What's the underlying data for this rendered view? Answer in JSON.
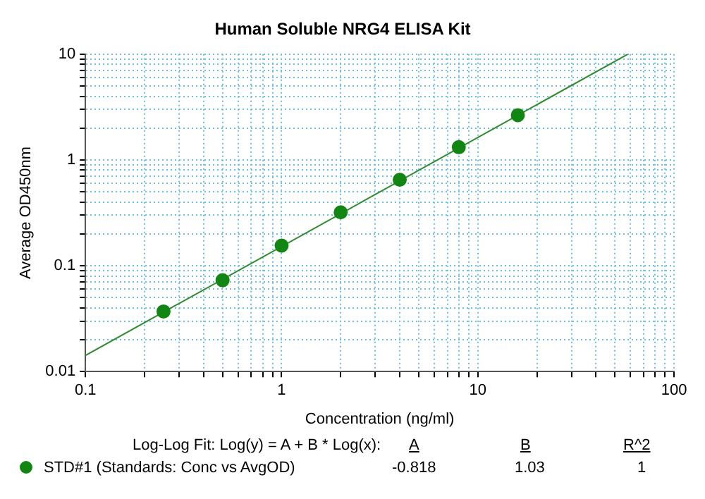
{
  "chart_data": {
    "type": "scatter",
    "title": "Human Soluble NRG4 ELISA Kit",
    "xlabel": "Concentration (ng/ml)",
    "ylabel": "Average OD450nm",
    "x": [
      0.25,
      0.5,
      1,
      2,
      4,
      8,
      16
    ],
    "series": [
      {
        "name": "STD#1 (Standards: Conc vs AvgOD)",
        "color": "#128612",
        "values": [
          0.037,
          0.073,
          0.155,
          0.32,
          0.65,
          1.32,
          2.65
        ]
      },
      {
        "type": "line",
        "color": "#2e8b2e",
        "x": [
          0.1,
          58.2
        ],
        "values": [
          0.0142,
          10
        ],
        "marker": "none"
      }
    ],
    "log": "xy",
    "xlim": [
      0.1,
      100
    ],
    "ylim": [
      0.01,
      10
    ],
    "xticks": [
      0.1,
      {
        "value": 0.2,
        "label": null
      },
      {
        "value": 0.3,
        "label": null
      },
      {
        "value": 0.4,
        "label": null
      },
      {
        "value": 0.5,
        "label": null
      },
      {
        "value": 0.6,
        "label": null
      },
      {
        "value": 0.7,
        "label": null
      },
      {
        "value": 0.8,
        "label": null
      },
      {
        "value": 0.9,
        "label": null
      },
      1,
      {
        "value": 2,
        "label": null
      },
      {
        "value": 3,
        "label": null
      },
      {
        "value": 4,
        "label": null
      },
      {
        "value": 5,
        "label": null
      },
      {
        "value": 6,
        "label": null
      },
      {
        "value": 7,
        "label": null
      },
      {
        "value": 8,
        "label": null
      },
      {
        "value": 9,
        "label": null
      },
      10,
      {
        "value": 20,
        "label": null
      },
      {
        "value": 30,
        "label": null
      },
      {
        "value": 40,
        "label": null
      },
      {
        "value": 50,
        "label": null
      },
      {
        "value": 60,
        "label": null
      },
      {
        "value": 70,
        "label": null
      },
      {
        "value": 80,
        "label": null
      },
      {
        "value": 90,
        "label": null
      },
      100
    ],
    "yticks": [
      0.01,
      {
        "value": 0.02,
        "label": null
      },
      {
        "value": 0.03,
        "label": null
      },
      {
        "value": 0.04,
        "label": null
      },
      {
        "value": 0.05,
        "label": null
      },
      {
        "value": 0.06,
        "label": null
      },
      {
        "value": 0.07,
        "label": null
      },
      {
        "value": 0.08,
        "label": null
      },
      {
        "value": 0.09,
        "label": null
      },
      0.1,
      {
        "value": 0.2,
        "label": null
      },
      {
        "value": 0.3,
        "label": null
      },
      {
        "value": 0.4,
        "label": null
      },
      {
        "value": 0.5,
        "label": null
      },
      {
        "value": 0.6,
        "label": null
      },
      {
        "value": 0.7,
        "label": null
      },
      {
        "value": 0.8,
        "label": null
      },
      {
        "value": 0.9,
        "label": null
      },
      1,
      {
        "value": 2,
        "label": null
      },
      {
        "value": 3,
        "label": null
      },
      {
        "value": 4,
        "label": null
      },
      {
        "value": 5,
        "label": null
      },
      {
        "value": 6,
        "label": null
      },
      {
        "value": 7,
        "label": null
      },
      {
        "value": 8,
        "label": null
      },
      {
        "value": 9,
        "label": null
      },
      10
    ],
    "grid": true,
    "marker": "circle",
    "legend": "bottom",
    "annotations": [
      "Log-Log Fit: Log(y) = A + B * Log(x):",
      "A",
      "B",
      "R^2",
      "-0.818",
      "1.03",
      "1"
    ]
  }
}
